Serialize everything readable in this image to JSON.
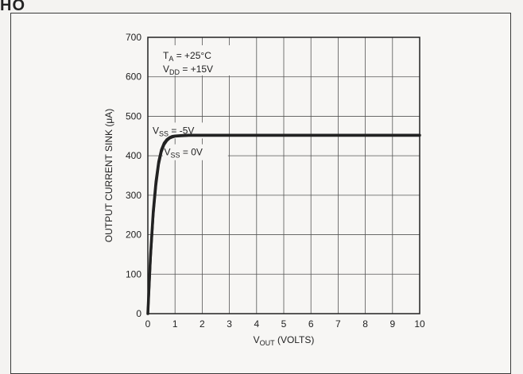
{
  "chart_data": {
    "type": "line",
    "xlabel": {
      "main": "V",
      "sub": "OUT",
      "rest": " (VOLTS)"
    },
    "ylabel": "OUTPUT CURRENT SINK (μA)",
    "xlim": [
      0,
      10
    ],
    "ylim": [
      0,
      700
    ],
    "xticks": [
      0,
      1,
      2,
      3,
      4,
      5,
      6,
      7,
      8,
      9,
      10
    ],
    "yticks": [
      0,
      100,
      200,
      300,
      400,
      500,
      600,
      700
    ],
    "grid": true,
    "conditions": [
      {
        "main": "T",
        "sub": "A",
        "rest": " = +25°C"
      },
      {
        "main": "V",
        "sub": "DD",
        "rest": " = +15V"
      }
    ],
    "series": [
      {
        "name": {
          "main": "V",
          "sub": "SS",
          "rest": " = -5V"
        },
        "x": [
          0,
          0.1,
          0.2,
          0.3,
          0.4,
          0.5,
          0.6,
          0.7,
          0.8,
          0.9,
          1.0,
          1.2,
          1.5,
          2,
          4,
          6,
          8,
          10
        ],
        "y": [
          0,
          150,
          260,
          335,
          385,
          415,
          432,
          441,
          446,
          449,
          450,
          451,
          452,
          452,
          452,
          452,
          452,
          452
        ]
      },
      {
        "name": {
          "main": "V",
          "sub": "SS",
          "rest": " = 0V"
        },
        "x": [
          0,
          0.1,
          0.2,
          0.3,
          0.4,
          0.5,
          0.6,
          0.7,
          0.8,
          0.9,
          1.0,
          1.2,
          1.5,
          2,
          4,
          6,
          8,
          10
        ],
        "y": [
          0,
          140,
          250,
          325,
          378,
          410,
          428,
          438,
          444,
          447,
          449,
          450,
          451,
          451,
          451,
          451,
          451,
          451
        ]
      }
    ]
  },
  "header_fragment": "HO"
}
